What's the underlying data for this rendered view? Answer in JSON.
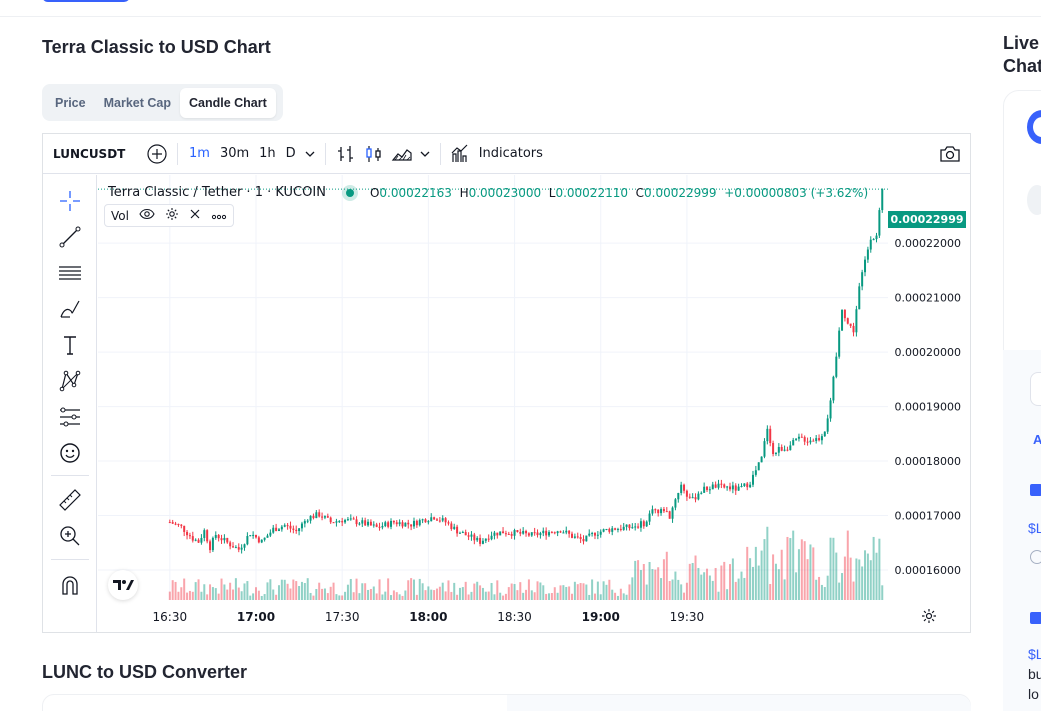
{
  "page": {
    "title": "Terra Classic to USD Chart",
    "tabs": [
      {
        "label": "Price",
        "active": false
      },
      {
        "label": "Market Cap",
        "active": false
      },
      {
        "label": "Candle Chart",
        "active": true
      }
    ],
    "converter_title": "LUNC to USD Converter"
  },
  "toolbar": {
    "symbol": "LUNCUSDT",
    "timeframes": [
      {
        "label": "1m",
        "active": true
      },
      {
        "label": "30m",
        "active": false
      },
      {
        "label": "1h",
        "active": false
      },
      {
        "label": "D",
        "active": false
      }
    ],
    "indicators_label": "Indicators"
  },
  "legend": {
    "name": "Terra Classic / Tether · 1 · KUCOIN",
    "o_key": "O",
    "o_val": "0.00022163",
    "h_key": "H",
    "h_val": "0.00023000",
    "l_key": "L",
    "l_val": "0.00022110",
    "c_key": "C",
    "c_val": "0.00022999",
    "change": "+0.00000803 (+3.62%)",
    "vol_label": "Vol"
  },
  "right_column": {
    "title_line1": "Live",
    "title_line2": "Chat",
    "snippets": [
      "A",
      "$L",
      "$L",
      "bu",
      "lo"
    ]
  },
  "colors": {
    "up": "#089981",
    "down": "#f23645",
    "accent": "#2962ff",
    "brand": "#3861fb"
  },
  "chart_data": {
    "type": "candlestick",
    "last_price_label": "0.00022999",
    "y_ticks": [
      "0.00022000",
      "0.00021000",
      "0.00020000",
      "0.00019000",
      "0.00018000",
      "0.00017000",
      "0.00016000"
    ],
    "y_tick_values": [
      0.00022,
      0.00021,
      0.0002,
      0.00019,
      0.00018,
      0.00017,
      0.00016
    ],
    "ylim": [
      0.0001545,
      0.0002325
    ],
    "x_ticks": [
      "16:30",
      "17:00",
      "17:30",
      "18:00",
      "18:30",
      "19:00",
      "19:30"
    ],
    "x_bold": [
      "17:00",
      "18:00",
      "19:00"
    ],
    "x_range_minutes": [
      0,
      195
    ],
    "x_tick_minutes": [
      20,
      50,
      80,
      110,
      140,
      170,
      200
    ],
    "close_path": [
      [
        0,
        0.0001688
      ],
      [
        4,
        0.0001679
      ],
      [
        8,
        0.0001658
      ],
      [
        10,
        0.0001652
      ],
      [
        12,
        0.0001672
      ],
      [
        14,
        0.0001642
      ],
      [
        16,
        0.0001665
      ],
      [
        20,
        0.000165
      ],
      [
        24,
        0.0001638
      ],
      [
        28,
        0.0001668
      ],
      [
        32,
        0.0001652
      ],
      [
        36,
        0.0001675
      ],
      [
        40,
        0.0001682
      ],
      [
        44,
        0.0001671
      ],
      [
        48,
        0.0001696
      ],
      [
        52,
        0.0001702
      ],
      [
        56,
        0.0001688
      ],
      [
        60,
        0.0001692
      ],
      [
        66,
        0.0001688
      ],
      [
        72,
        0.0001678
      ],
      [
        78,
        0.0001688
      ],
      [
        84,
        0.0001684
      ],
      [
        88,
        0.0001692
      ],
      [
        92,
        0.0001698
      ],
      [
        96,
        0.0001688
      ],
      [
        100,
        0.0001672
      ],
      [
        104,
        0.0001662
      ],
      [
        108,
        0.0001652
      ],
      [
        112,
        0.0001666
      ],
      [
        116,
        0.000167
      ],
      [
        120,
        0.0001668
      ],
      [
        126,
        0.0001664
      ],
      [
        132,
        0.000167
      ],
      [
        136,
        0.0001674
      ],
      [
        140,
        0.0001662
      ],
      [
        144,
        0.0001654
      ],
      [
        148,
        0.0001668
      ],
      [
        154,
        0.0001676
      ],
      [
        160,
        0.0001678
      ],
      [
        164,
        0.0001684
      ],
      [
        166,
        0.0001688
      ],
      [
        168,
        0.0001716
      ],
      [
        170,
        0.0001704
      ],
      [
        172,
        0.0001712
      ],
      [
        174,
        0.0001698
      ],
      [
        176,
        0.0001732
      ],
      [
        178,
        0.0001756
      ],
      [
        180,
        0.0001738
      ],
      [
        182,
        0.0001728
      ],
      [
        184,
        0.0001742
      ],
      [
        186,
        0.0001748
      ],
      [
        188,
        0.0001752
      ],
      [
        190,
        0.0001754
      ],
      [
        192,
        0.0001752
      ],
      [
        194,
        0.0001752
      ],
      [
        196,
        0.000175
      ],
      [
        198,
        0.0001748
      ],
      [
        200,
        0.0001754
      ],
      [
        202,
        0.0001762
      ],
      [
        204,
        0.0001782
      ],
      [
        206,
        0.0001805
      ],
      [
        208,
        0.0001862
      ],
      [
        209,
        0.0001838
      ],
      [
        210,
        0.0001812
      ],
      [
        212,
        0.0001822
      ],
      [
        214,
        0.0001824
      ],
      [
        216,
        0.0001828
      ],
      [
        218,
        0.0001838
      ],
      [
        220,
        0.0001842
      ],
      [
        222,
        0.0001838
      ],
      [
        224,
        0.000184
      ],
      [
        226,
        0.0001842
      ],
      [
        228,
        0.0001858
      ],
      [
        230,
        0.0001906
      ],
      [
        232,
        0.0001992
      ],
      [
        234,
        0.0002082
      ],
      [
        236,
        0.0002052
      ],
      [
        238,
        0.000204
      ],
      [
        240,
        0.0002118
      ],
      [
        242,
        0.0002168
      ],
      [
        244,
        0.0002212
      ],
      [
        246,
        0.0002212
      ],
      [
        248,
        0.0002299
      ]
    ],
    "volume_max": 1.0
  }
}
